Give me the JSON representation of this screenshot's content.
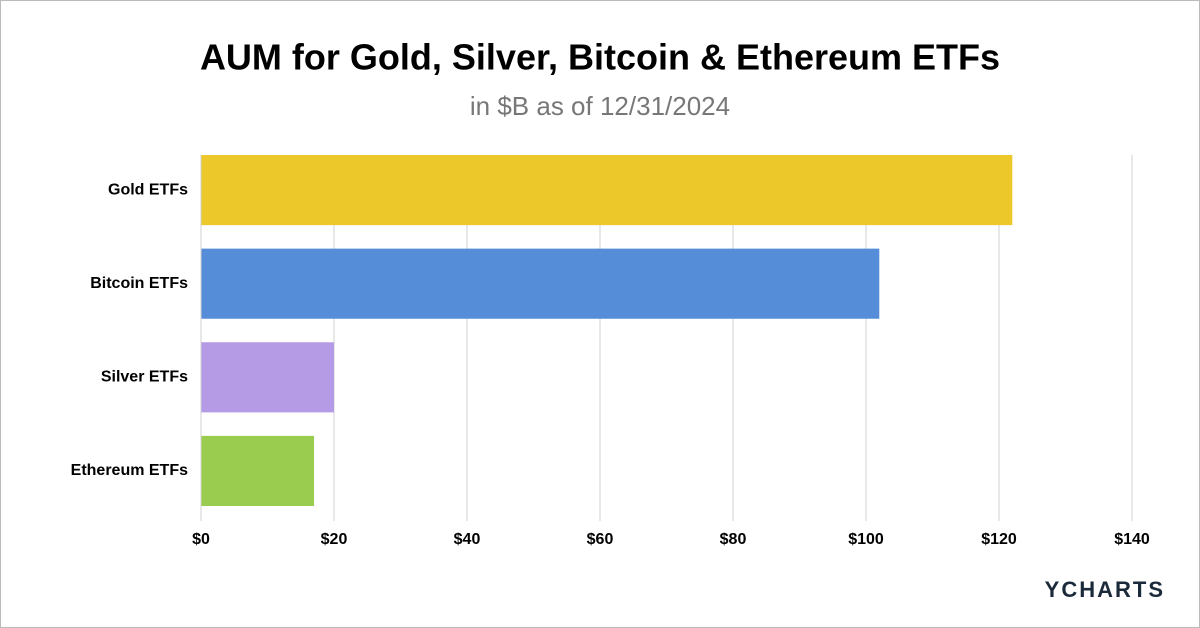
{
  "chart_data": {
    "type": "bar",
    "orientation": "horizontal",
    "title": "AUM for Gold, Silver, Bitcoin & Ethereum ETFs",
    "subtitle": "in $B as of 12/31/2024",
    "categories": [
      "Gold ETFs",
      "Bitcoin ETFs",
      "Silver ETFs",
      "Ethereum ETFs"
    ],
    "values": [
      122,
      102,
      20,
      17
    ],
    "colors": [
      "#ecc82a",
      "#568dd8",
      "#b59ae6",
      "#9acd4f"
    ],
    "xlim": [
      0,
      140
    ],
    "xticks": [
      {
        "value": 0,
        "label": "$0"
      },
      {
        "value": 20,
        "label": "$20"
      },
      {
        "value": 40,
        "label": "$40"
      },
      {
        "value": 60,
        "label": "$60"
      },
      {
        "value": 80,
        "label": "$80"
      },
      {
        "value": 100,
        "label": "$100"
      },
      {
        "value": 120,
        "label": "$120"
      },
      {
        "value": 140,
        "label": "$140"
      }
    ],
    "grid": true
  },
  "logo": "YCHARTS"
}
